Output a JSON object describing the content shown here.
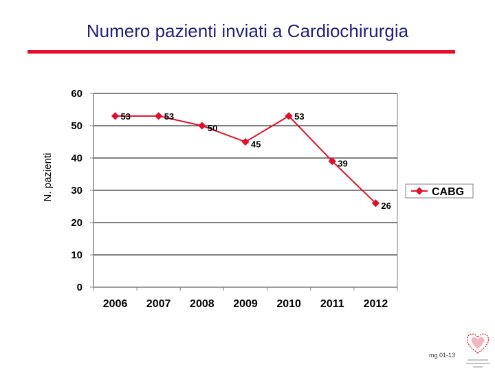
{
  "slide": {
    "title": "Numero pazienti inviati a Cardiochirurgia",
    "footer_code": "mg 01-13"
  },
  "colors": {
    "title": "#1f1f7a",
    "accent_rule": "#e0102a",
    "series": "#e0102a",
    "axis": "#808080",
    "gridline": "#000000"
  },
  "chart_data": {
    "type": "line",
    "title": "",
    "xlabel": "",
    "ylabel": "N. pazienti",
    "categories": [
      "2006",
      "2007",
      "2008",
      "2009",
      "2010",
      "2011",
      "2012"
    ],
    "ylim": [
      0,
      60
    ],
    "yticks": [
      0,
      10,
      20,
      30,
      40,
      50,
      60
    ],
    "grid": true,
    "legend_position": "right",
    "series": [
      {
        "name": "CABG",
        "values": [
          53,
          53,
          50,
          45,
          53,
          39,
          26
        ]
      }
    ]
  }
}
